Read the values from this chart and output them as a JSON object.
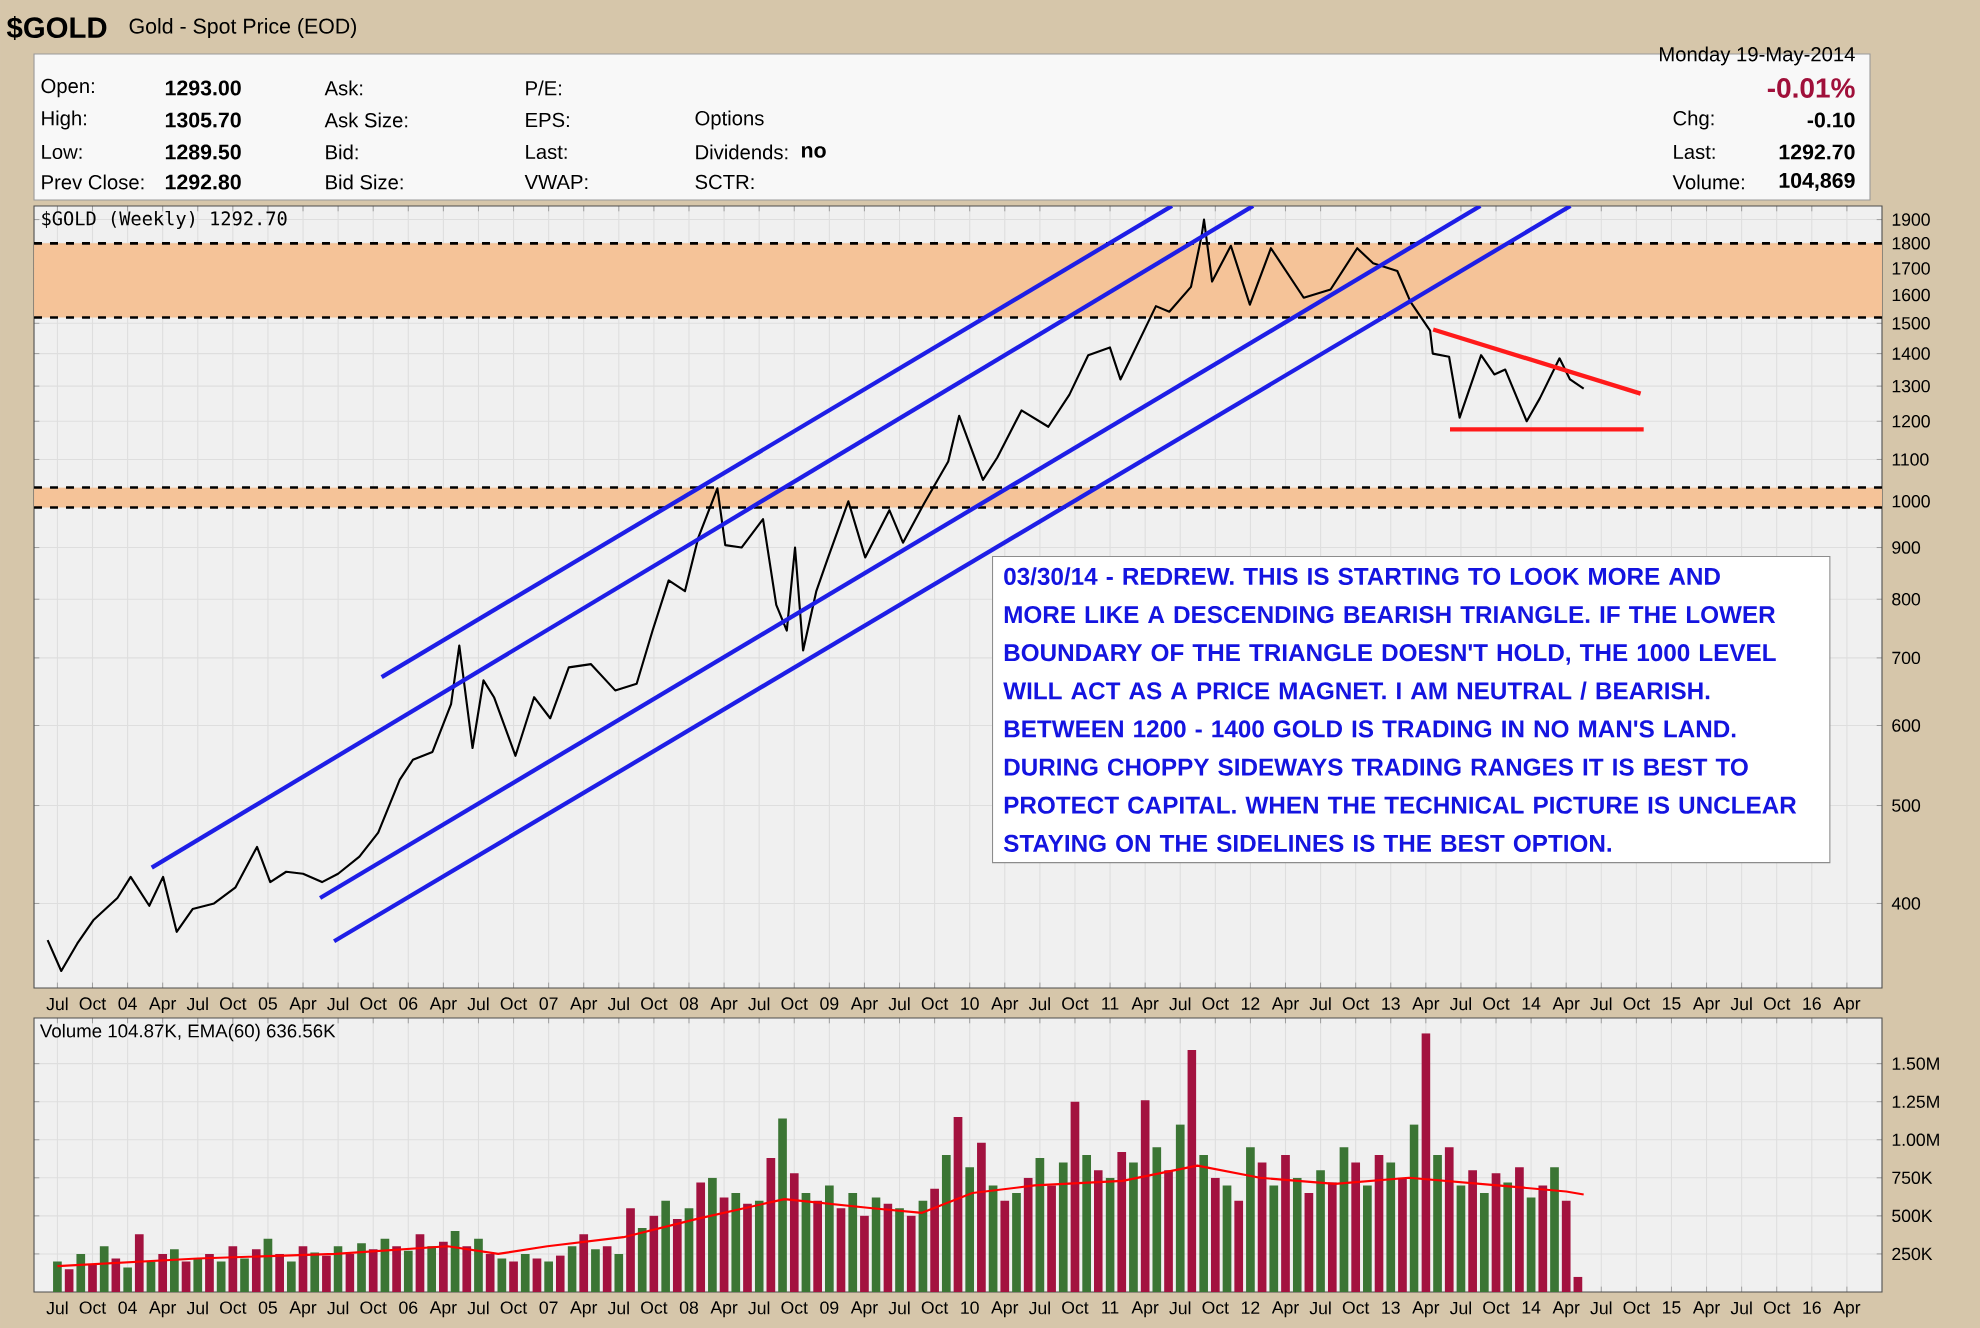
{
  "chart_data": [
    {
      "type": "line",
      "title": "$GOLD",
      "subtitle": "Gold - Spot Price (EOD)",
      "annotations": [
        "Open:",
        "1293.00",
        "High:",
        "1305.70",
        "Low:",
        "1289.50",
        "Prev Close:",
        "1292.80",
        "Ask:",
        "Ask Size:",
        "Bid:",
        "Bid Size:",
        "P/E:",
        "EPS:",
        "Last:",
        "VWAP:",
        "Options",
        "Dividends:",
        "no",
        "SCTR:",
        "Monday 19-May-2014",
        "-0.01%",
        "Chg:",
        "-0.10",
        "Last:",
        "1292.70",
        "Volume:",
        "104,869",
        "$GOLD (Weekly) 1292.70",
        "03/30/14 - REDREW. THIS IS STARTING TO LOOK MORE AND MORE LIKE A DESCENDING BEARISH TRIANGLE. IF THE LOWER BOUNDARY OF THE TRIANGLE DOESN'T HOLD, THE 1000 LEVEL WILL ACT AS A PRICE MAGNET. I AM NEUTRAL / BEARISH. BETWEEN 1200 - 1400 GOLD IS TRADING IN NO MAN'S LAND. DURING CHOPPY SIDEWAYS TRADING RANGES IT IS BEST TO PROTECT CAPITAL. WHEN THE TECHNICAL PICTURE IS UNCLEAR STAYING ON THE SIDELINES IS THE BEST OPTION."
      ],
      "xlim": [
        "2003-05",
        "2016-07"
      ],
      "xticks": [
        {
          "value": "2003-07",
          "label": "Jul"
        },
        {
          "value": "2003-10",
          "label": "Oct"
        },
        {
          "value": "2004-01",
          "label": "04"
        },
        {
          "value": "2004-04",
          "label": "Apr"
        },
        {
          "value": "2004-07",
          "label": "Jul"
        },
        {
          "value": "2004-10",
          "label": "Oct"
        },
        {
          "value": "2005-01",
          "label": "05"
        },
        {
          "value": "2005-04",
          "label": "Apr"
        },
        {
          "value": "2005-07",
          "label": "Jul"
        },
        {
          "value": "2005-10",
          "label": "Oct"
        },
        {
          "value": "2006-01",
          "label": "06"
        },
        {
          "value": "2006-04",
          "label": "Apr"
        },
        {
          "value": "2006-07",
          "label": "Jul"
        },
        {
          "value": "2006-10",
          "label": "Oct"
        },
        {
          "value": "2007-01",
          "label": "07"
        },
        {
          "value": "2007-04",
          "label": "Apr"
        },
        {
          "value": "2007-07",
          "label": "Jul"
        },
        {
          "value": "2007-10",
          "label": "Oct"
        },
        {
          "value": "2008-01",
          "label": "08"
        },
        {
          "value": "2008-04",
          "label": "Apr"
        },
        {
          "value": "2008-07",
          "label": "Jul"
        },
        {
          "value": "2008-10",
          "label": "Oct"
        },
        {
          "value": "2009-01",
          "label": "09"
        },
        {
          "value": "2009-04",
          "label": "Apr"
        },
        {
          "value": "2009-07",
          "label": "Jul"
        },
        {
          "value": "2009-10",
          "label": "Oct"
        },
        {
          "value": "2010-01",
          "label": "10"
        },
        {
          "value": "2010-04",
          "label": "Apr"
        },
        {
          "value": "2010-07",
          "label": "Jul"
        },
        {
          "value": "2010-10",
          "label": "Oct"
        },
        {
          "value": "2011-01",
          "label": "11"
        },
        {
          "value": "2011-04",
          "label": "Apr"
        },
        {
          "value": "2011-07",
          "label": "Jul"
        },
        {
          "value": "2011-10",
          "label": "Oct"
        },
        {
          "value": "2012-01",
          "label": "12"
        },
        {
          "value": "2012-04",
          "label": "Apr"
        },
        {
          "value": "2012-07",
          "label": "Jul"
        },
        {
          "value": "2012-10",
          "label": "Oct"
        },
        {
          "value": "2013-01",
          "label": "13"
        },
        {
          "value": "2013-04",
          "label": "Apr"
        },
        {
          "value": "2013-07",
          "label": "Jul"
        },
        {
          "value": "2013-10",
          "label": "Oct"
        },
        {
          "value": "2014-01",
          "label": "14"
        },
        {
          "value": "2014-04",
          "label": "Apr"
        },
        {
          "value": "2014-07",
          "label": "Jul"
        },
        {
          "value": "2014-10",
          "label": "Oct"
        },
        {
          "value": "2015-01",
          "label": "15"
        },
        {
          "value": "2015-04",
          "label": "Apr"
        },
        {
          "value": "2015-07",
          "label": "Jul"
        },
        {
          "value": "2015-10",
          "label": "Oct"
        },
        {
          "value": "2016-01",
          "label": "16"
        },
        {
          "value": "2016-04",
          "label": "Apr"
        }
      ],
      "ylim": [
        330,
        1960
      ],
      "yticks": [
        400,
        500,
        600,
        700,
        800,
        900,
        1000,
        1100,
        1200,
        1300,
        1400,
        1500,
        1600,
        1700,
        1800,
        1900
      ],
      "log": "y",
      "grid": true,
      "bands": [
        {
          "axis": "y",
          "from": 1520,
          "to": 1800,
          "color": "#f5c398"
        },
        {
          "axis": "y",
          "from": 986,
          "to": 1032,
          "color": "#f5c398"
        }
      ],
      "series": [
        {
          "color": "#000000",
          "x": [
            "2003-06-06",
            "2003-07-11",
            "2003-08-22",
            "2003-10-03",
            "2003-12-05",
            "2004-01-09",
            "2004-02-27",
            "2004-04-02",
            "2004-05-07",
            "2004-06-18",
            "2004-08-13",
            "2004-10-08",
            "2004-12-03",
            "2005-01-07",
            "2005-02-18",
            "2005-04-01",
            "2005-05-20",
            "2005-07-01",
            "2005-08-26",
            "2005-10-14",
            "2005-12-09",
            "2006-01-13",
            "2006-03-03",
            "2006-04-21",
            "2006-05-12",
            "2006-06-16",
            "2006-07-14",
            "2006-08-11",
            "2006-10-06",
            "2006-11-24",
            "2007-01-05",
            "2007-02-23",
            "2007-04-20",
            "2007-06-22",
            "2007-08-17",
            "2007-09-28",
            "2007-11-09",
            "2007-12-21",
            "2008-01-25",
            "2008-03-14",
            "2008-04-04",
            "2008-05-16",
            "2008-07-11",
            "2008-08-15",
            "2008-09-12",
            "2008-10-03",
            "2008-10-24",
            "2008-11-28",
            "2008-12-26",
            "2009-02-20",
            "2009-04-03",
            "2009-06-05",
            "2009-07-10",
            "2009-09-04",
            "2009-11-06",
            "2009-12-04",
            "2010-02-05",
            "2010-03-12",
            "2010-05-14",
            "2010-07-23",
            "2010-09-17",
            "2010-11-05",
            "2010-12-31",
            "2011-01-28",
            "2011-04-29",
            "2011-06-03",
            "2011-07-29",
            "2011-08-26",
            "2011-09-02",
            "2011-09-23",
            "2011-11-11",
            "2011-12-30",
            "2012-02-24",
            "2012-05-18",
            "2012-07-27",
            "2012-10-05",
            "2012-11-16",
            "2013-01-18",
            "2013-02-22",
            "2013-04-12",
            "2013-04-19",
            "2013-05-31",
            "2013-06-28",
            "2013-08-23",
            "2013-09-27",
            "2013-10-25",
            "2013-12-20",
            "2014-01-24",
            "2014-03-14",
            "2014-04-11",
            "2014-05-16"
          ],
          "values": [
            368,
            343,
            365,
            385,
            405,
            425,
            398,
            425,
            375,
            395,
            400,
            415,
            455,
            420,
            430,
            428,
            420,
            428,
            445,
            470,
            530,
            555,
            565,
            630,
            720,
            570,
            665,
            640,
            560,
            640,
            610,
            685,
            690,
            650,
            660,
            745,
            835,
            815,
            920,
            1030,
            905,
            900,
            960,
            790,
            745,
            900,
            712,
            815,
            875,
            1000,
            880,
            980,
            910,
            995,
            1095,
            1215,
            1050,
            1105,
            1230,
            1185,
            1275,
            1395,
            1420,
            1320,
            1560,
            1540,
            1630,
            1830,
            1900,
            1650,
            1790,
            1565,
            1780,
            1590,
            1620,
            1780,
            1720,
            1690,
            1575,
            1475,
            1400,
            1390,
            1210,
            1395,
            1335,
            1350,
            1200,
            1265,
            1385,
            1320,
            1292.7
          ]
        },
        {
          "type": "line",
          "color": "#1e1ee6",
          "x": [
            "2005-10-23",
            "2011-06-10"
          ],
          "values": [
            670,
            1960
          ]
        },
        {
          "type": "line",
          "color": "#1e1ee6",
          "x": [
            "2004-03-03",
            "2012-01-08"
          ],
          "values": [
            434,
            1960
          ]
        },
        {
          "type": "line",
          "color": "#1e1ee6",
          "x": [
            "2005-05-15",
            "2013-08-21"
          ],
          "values": [
            405,
            1960
          ]
        },
        {
          "type": "line",
          "color": "#1e1ee6",
          "x": [
            "2005-06-21",
            "2014-04-12"
          ],
          "values": [
            367,
            1960
          ]
        },
        {
          "type": "line",
          "color": "#ff1a1a",
          "x": [
            "2013-04-20",
            "2014-10-12"
          ],
          "values": [
            1479,
            1278
          ]
        },
        {
          "type": "line",
          "color": "#ff1a1a",
          "x": [
            "2013-06-03",
            "2014-10-20"
          ],
          "values": [
            1178,
            1178
          ]
        }
      ]
    },
    {
      "type": "bar",
      "title": "Volume 104.87K, EMA(60) 636.56K",
      "xlim": [
        "2003-05",
        "2016-07"
      ],
      "xticks": [
        {
          "value": "2003-07",
          "label": "Jul"
        },
        {
          "value": "2003-10",
          "label": "Oct"
        },
        {
          "value": "2004-01",
          "label": "04"
        },
        {
          "value": "2004-04",
          "label": "Apr"
        },
        {
          "value": "2004-07",
          "label": "Jul"
        },
        {
          "value": "2004-10",
          "label": "Oct"
        },
        {
          "value": "2005-01",
          "label": "05"
        },
        {
          "value": "2005-04",
          "label": "Apr"
        },
        {
          "value": "2005-07",
          "label": "Jul"
        },
        {
          "value": "2005-10",
          "label": "Oct"
        },
        {
          "value": "2006-01",
          "label": "06"
        },
        {
          "value": "2006-04",
          "label": "Apr"
        },
        {
          "value": "2006-07",
          "label": "Jul"
        },
        {
          "value": "2006-10",
          "label": "Oct"
        },
        {
          "value": "2007-01",
          "label": "07"
        },
        {
          "value": "2007-04",
          "label": "Apr"
        },
        {
          "value": "2007-07",
          "label": "Jul"
        },
        {
          "value": "2007-10",
          "label": "Oct"
        },
        {
          "value": "2008-01",
          "label": "08"
        },
        {
          "value": "2008-04",
          "label": "Apr"
        },
        {
          "value": "2008-07",
          "label": "Jul"
        },
        {
          "value": "2008-10",
          "label": "Oct"
        },
        {
          "value": "2009-01",
          "label": "09"
        },
        {
          "value": "2009-04",
          "label": "Apr"
        },
        {
          "value": "2009-07",
          "label": "Jul"
        },
        {
          "value": "2009-10",
          "label": "Oct"
        },
        {
          "value": "2010-01",
          "label": "10"
        },
        {
          "value": "2010-04",
          "label": "Apr"
        },
        {
          "value": "2010-07",
          "label": "Jul"
        },
        {
          "value": "2010-10",
          "label": "Oct"
        },
        {
          "value": "2011-01",
          "label": "11"
        },
        {
          "value": "2011-04",
          "label": "Apr"
        },
        {
          "value": "2011-07",
          "label": "Jul"
        },
        {
          "value": "2011-10",
          "label": "Oct"
        },
        {
          "value": "2012-01",
          "label": "12"
        },
        {
          "value": "2012-04",
          "label": "Apr"
        },
        {
          "value": "2012-07",
          "label": "Jul"
        },
        {
          "value": "2012-10",
          "label": "Oct"
        },
        {
          "value": "2013-01",
          "label": "13"
        },
        {
          "value": "2013-04",
          "label": "Apr"
        },
        {
          "value": "2013-07",
          "label": "Jul"
        },
        {
          "value": "2013-10",
          "label": "Oct"
        },
        {
          "value": "2014-01",
          "label": "14"
        },
        {
          "value": "2014-04",
          "label": "Apr"
        },
        {
          "value": "2014-07",
          "label": "Jul"
        },
        {
          "value": "2014-10",
          "label": "Oct"
        },
        {
          "value": "2015-01",
          "label": "15"
        },
        {
          "value": "2015-04",
          "label": "Apr"
        },
        {
          "value": "2015-07",
          "label": "Jul"
        },
        {
          "value": "2015-10",
          "label": "Oct"
        },
        {
          "value": "2016-01",
          "label": "16"
        },
        {
          "value": "2016-04",
          "label": "Apr"
        }
      ],
      "ylim": [
        0,
        1800000
      ],
      "yticks": [
        {
          "value": 250000,
          "label": "250K"
        },
        {
          "value": 500000,
          "label": "500K"
        },
        {
          "value": 750000,
          "label": "750K"
        },
        {
          "value": 1000000,
          "label": "1.00M"
        },
        {
          "value": 1250000,
          "label": "1.25M"
        },
        {
          "value": 1500000,
          "label": "1.50M"
        }
      ],
      "grid": true,
      "series": [
        {
          "type": "bar",
          "x": [
            "2003-07",
            "2003-08",
            "2003-09",
            "2003-10",
            "2003-11",
            "2003-12",
            "2004-01",
            "2004-02",
            "2004-03",
            "2004-04",
            "2004-05",
            "2004-06",
            "2004-07",
            "2004-08",
            "2004-09",
            "2004-10",
            "2004-11",
            "2004-12",
            "2005-01",
            "2005-02",
            "2005-03",
            "2005-04",
            "2005-05",
            "2005-06",
            "2005-07",
            "2005-08",
            "2005-09",
            "2005-10",
            "2005-11",
            "2005-12",
            "2006-01",
            "2006-02",
            "2006-03",
            "2006-04",
            "2006-05",
            "2006-06",
            "2006-07",
            "2006-08",
            "2006-09",
            "2006-10",
            "2006-11",
            "2006-12",
            "2007-01",
            "2007-02",
            "2007-03",
            "2007-04",
            "2007-05",
            "2007-06",
            "2007-07",
            "2007-08",
            "2007-09",
            "2007-10",
            "2007-11",
            "2007-12",
            "2008-01",
            "2008-02",
            "2008-03",
            "2008-04",
            "2008-05",
            "2008-06",
            "2008-07",
            "2008-08",
            "2008-09",
            "2008-10",
            "2008-11",
            "2008-12",
            "2009-01",
            "2009-02",
            "2009-03",
            "2009-04",
            "2009-05",
            "2009-06",
            "2009-07",
            "2009-08",
            "2009-09",
            "2009-10",
            "2009-11",
            "2009-12",
            "2010-01",
            "2010-02",
            "2010-03",
            "2010-04",
            "2010-05",
            "2010-06",
            "2010-07",
            "2010-08",
            "2010-09",
            "2010-10",
            "2010-11",
            "2010-12",
            "2011-01",
            "2011-02",
            "2011-03",
            "2011-04",
            "2011-05",
            "2011-06",
            "2011-07",
            "2011-08",
            "2011-09",
            "2011-10",
            "2011-11",
            "2011-12",
            "2012-01",
            "2012-02",
            "2012-03",
            "2012-04",
            "2012-05",
            "2012-06",
            "2012-07",
            "2012-08",
            "2012-09",
            "2012-10",
            "2012-11",
            "2012-12",
            "2013-01",
            "2013-02",
            "2013-03",
            "2013-04",
            "2013-05",
            "2013-06",
            "2013-07",
            "2013-08",
            "2013-09",
            "2013-10",
            "2013-11",
            "2013-12",
            "2014-01",
            "2014-02",
            "2014-03",
            "2014-04",
            "2014-05"
          ],
          "values": [
            200000,
            150000,
            250000,
            180000,
            300000,
            220000,
            160000,
            380000,
            200000,
            250000,
            280000,
            200000,
            220000,
            250000,
            200000,
            300000,
            220000,
            280000,
            350000,
            250000,
            200000,
            300000,
            260000,
            240000,
            300000,
            250000,
            320000,
            280000,
            350000,
            300000,
            270000,
            380000,
            300000,
            330000,
            400000,
            300000,
            350000,
            250000,
            220000,
            200000,
            250000,
            220000,
            200000,
            240000,
            300000,
            380000,
            280000,
            300000,
            250000,
            550000,
            420000,
            500000,
            600000,
            480000,
            550000,
            720000,
            750000,
            620000,
            650000,
            580000,
            600000,
            880000,
            1140000,
            780000,
            650000,
            600000,
            700000,
            550000,
            650000,
            500000,
            620000,
            580000,
            550000,
            500000,
            600000,
            680000,
            900000,
            1150000,
            820000,
            980000,
            700000,
            600000,
            650000,
            750000,
            880000,
            700000,
            850000,
            1250000,
            900000,
            800000,
            750000,
            920000,
            850000,
            1260000,
            950000,
            800000,
            1100000,
            1590000,
            900000,
            750000,
            700000,
            600000,
            950000,
            850000,
            700000,
            900000,
            750000,
            650000,
            800000,
            720000,
            950000,
            850000,
            700000,
            900000,
            850000,
            750000,
            1100000,
            1700000,
            900000,
            950000,
            700000,
            800000,
            650000,
            780000,
            720000,
            820000,
            620000,
            700000,
            820000,
            600000,
            100000
          ],
          "colors": [
            "#3b7534",
            "#a3123f",
            "#3b7534",
            "#a3123f",
            "#3b7534",
            "#a3123f",
            "#3b7534",
            "#a3123f",
            "#3b7534",
            "#a3123f",
            "#3b7534",
            "#a3123f",
            "#3b7534",
            "#a3123f",
            "#3b7534",
            "#a3123f",
            "#3b7534",
            "#a3123f",
            "#3b7534",
            "#a3123f",
            "#3b7534",
            "#a3123f",
            "#3b7534",
            "#a3123f",
            "#3b7534",
            "#a3123f",
            "#3b7534",
            "#a3123f",
            "#3b7534",
            "#a3123f",
            "#3b7534",
            "#a3123f",
            "#3b7534",
            "#a3123f",
            "#3b7534",
            "#a3123f",
            "#3b7534",
            "#a3123f",
            "#3b7534",
            "#a3123f",
            "#3b7534",
            "#a3123f",
            "#3b7534",
            "#a3123f",
            "#3b7534",
            "#a3123f",
            "#3b7534",
            "#a3123f",
            "#3b7534",
            "#a3123f",
            "#3b7534",
            "#a3123f",
            "#3b7534",
            "#a3123f",
            "#3b7534",
            "#a3123f",
            "#3b7534",
            "#a3123f",
            "#3b7534",
            "#a3123f",
            "#3b7534",
            "#a3123f",
            "#3b7534",
            "#a3123f",
            "#3b7534",
            "#a3123f",
            "#3b7534",
            "#a3123f",
            "#3b7534",
            "#a3123f",
            "#3b7534",
            "#a3123f",
            "#3b7534",
            "#a3123f",
            "#3b7534",
            "#a3123f",
            "#3b7534",
            "#a3123f",
            "#3b7534",
            "#a3123f",
            "#3b7534",
            "#a3123f",
            "#3b7534",
            "#a3123f",
            "#3b7534",
            "#a3123f",
            "#3b7534",
            "#a3123f",
            "#3b7534",
            "#a3123f",
            "#3b7534",
            "#a3123f",
            "#3b7534",
            "#a3123f",
            "#3b7534",
            "#a3123f",
            "#3b7534",
            "#a3123f",
            "#3b7534",
            "#a3123f",
            "#3b7534",
            "#a3123f",
            "#3b7534",
            "#a3123f",
            "#3b7534",
            "#a3123f",
            "#3b7534",
            "#a3123f",
            "#3b7534",
            "#a3123f",
            "#3b7534",
            "#a3123f",
            "#3b7534",
            "#a3123f",
            "#3b7534",
            "#a3123f",
            "#3b7534",
            "#a3123f",
            "#3b7534",
            "#a3123f",
            "#3b7534",
            "#a3123f",
            "#3b7534",
            "#a3123f",
            "#3b7534",
            "#a3123f",
            "#3b7534",
            "#a3123f",
            "#3b7534",
            "#a3123f",
            "#a3123f"
          ]
        },
        {
          "type": "line",
          "color": "#ff0000",
          "x": [
            "2003-07",
            "2004-07",
            "2005-06-25",
            "2006-04-12",
            "2006-08-22",
            "2006-12-28",
            "2007-07-13",
            "2008-01-22",
            "2008-09-06",
            "2009-04-22",
            "2009-08-29",
            "2010-01-08",
            "2010-06-18",
            "2011-02-03",
            "2011-08-15",
            "2012-01-26",
            "2012-08-08",
            "2013-02-18",
            "2013-10-05",
            "2014-04-01",
            "2014-05-16"
          ],
          "values": [
            170000,
            220000,
            250000,
            300000,
            250000,
            300000,
            360000,
            480000,
            610000,
            550000,
            520000,
            650000,
            700000,
            730000,
            830000,
            750000,
            710000,
            750000,
            700000,
            660000,
            640000
          ]
        }
      ]
    }
  ]
}
